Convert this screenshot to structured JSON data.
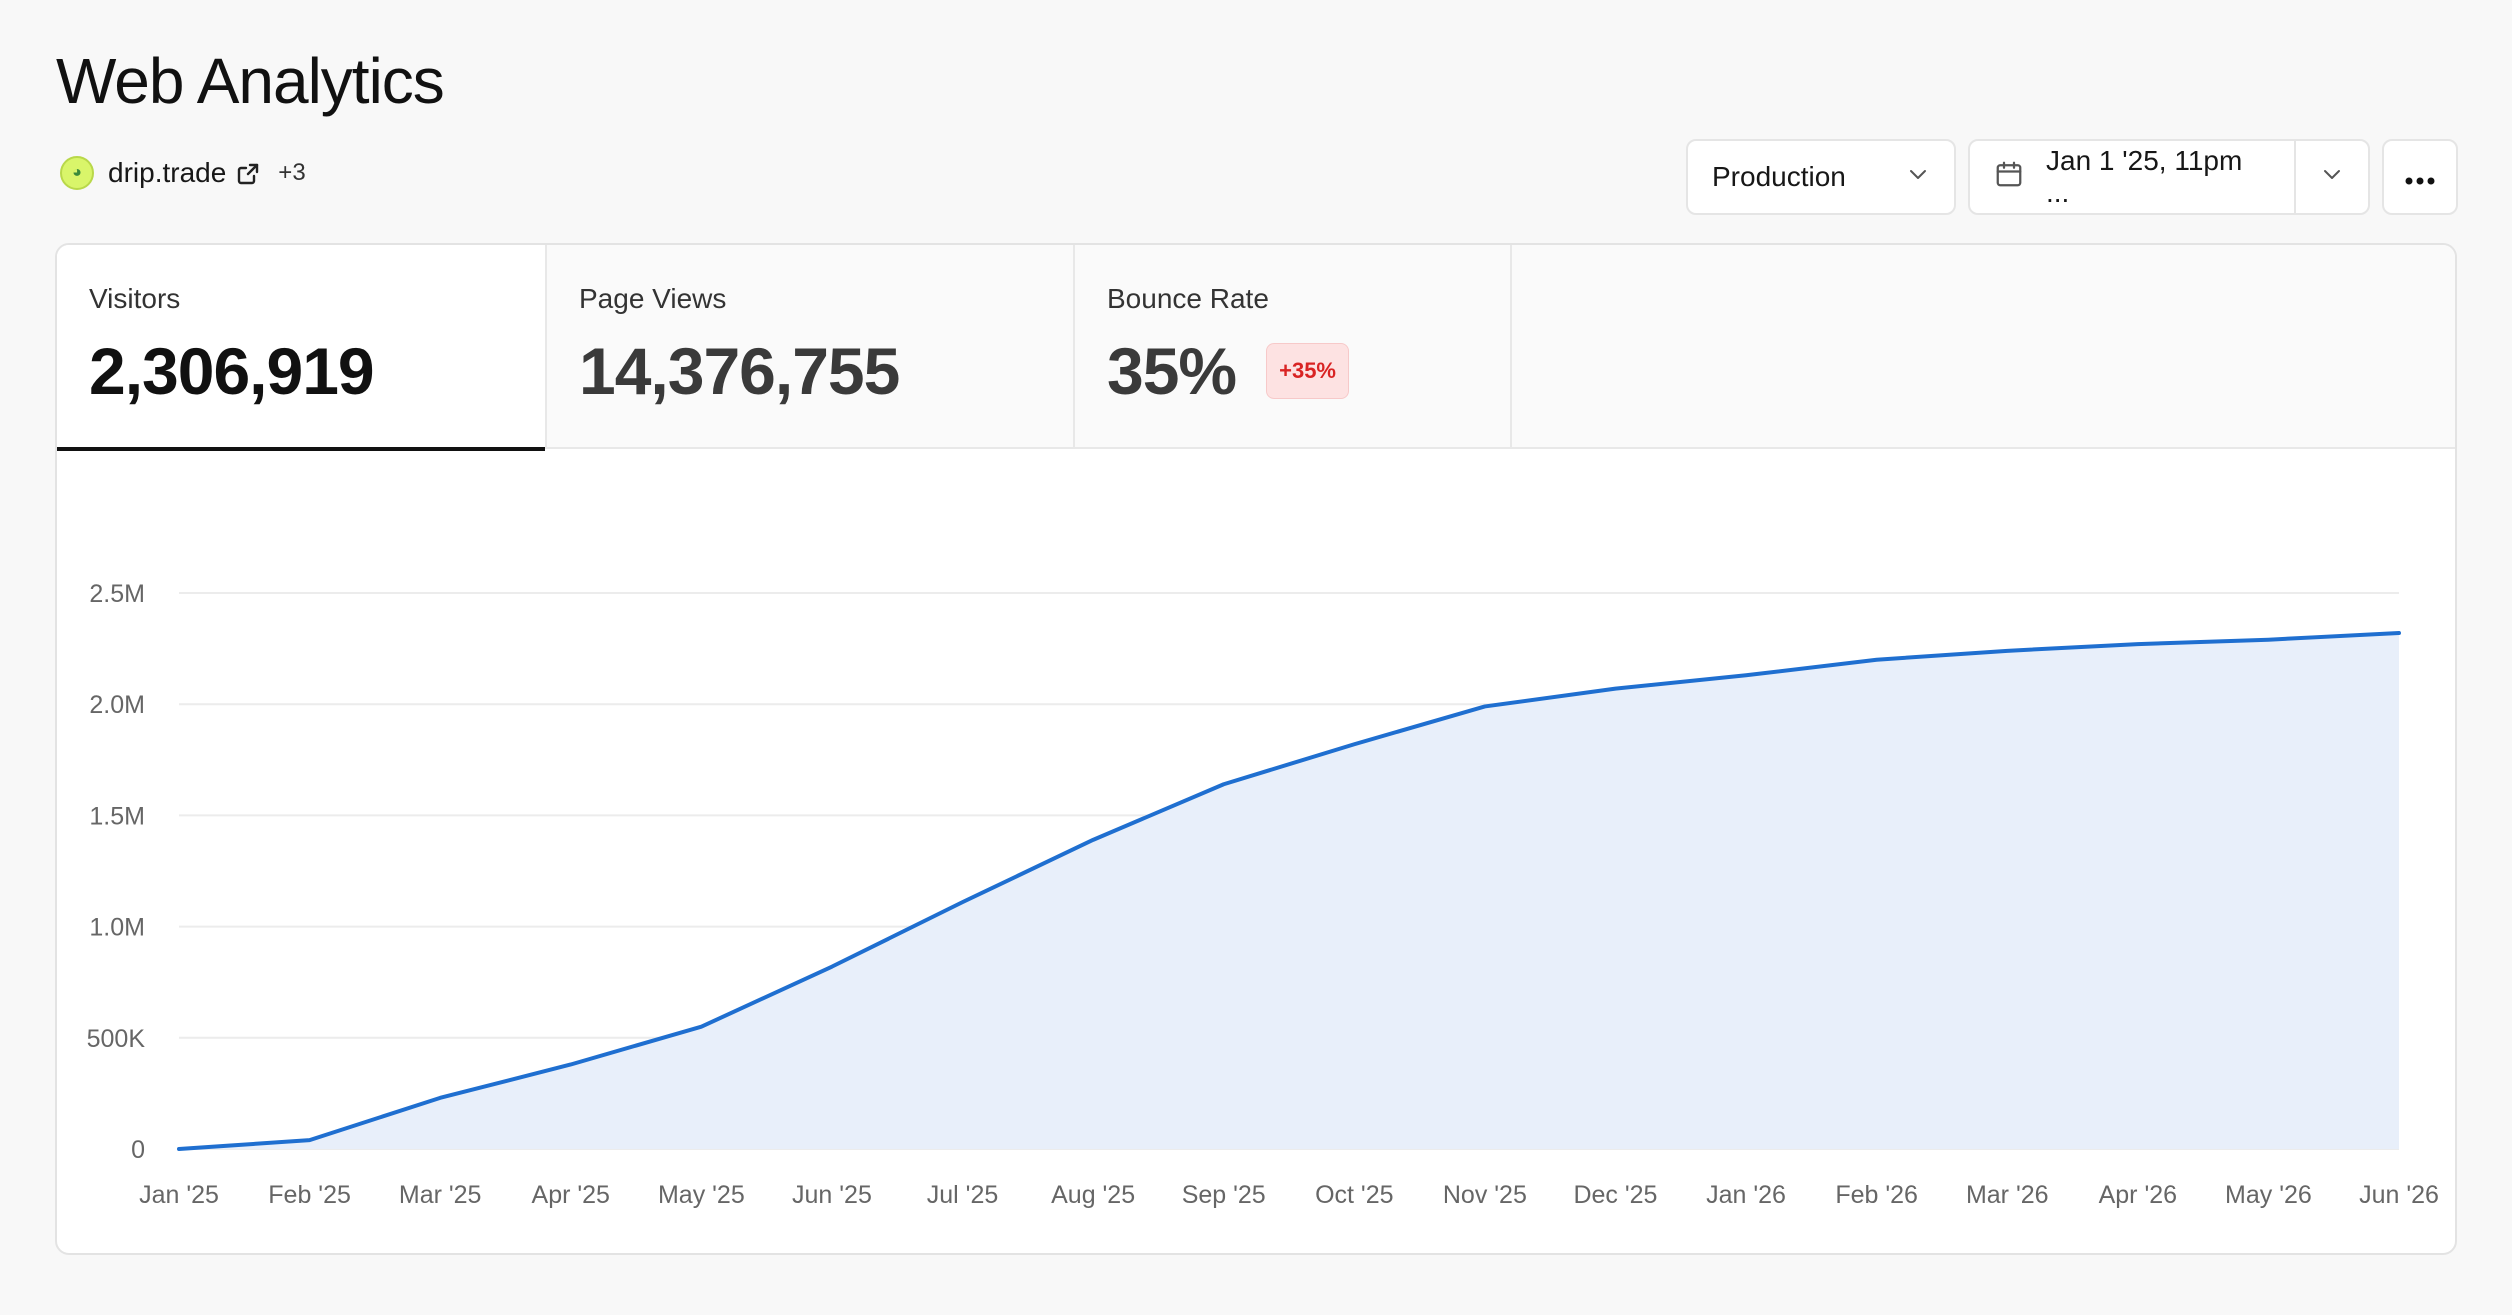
{
  "page": {
    "title": "Web Analytics"
  },
  "project": {
    "name": "drip.trade",
    "more": "+3"
  },
  "controls": {
    "environment": "Production",
    "date_range": "Jan 1 '25, 11pm ..."
  },
  "metrics": [
    {
      "label": "Visitors",
      "value": "2,306,919",
      "active": true
    },
    {
      "label": "Page Views",
      "value": "14,376,755",
      "active": false
    },
    {
      "label": "Bounce Rate",
      "value": "35%",
      "badge": "+35%",
      "active": false
    }
  ],
  "colors": {
    "line": "#1f6fd0",
    "area": "#e8effa",
    "badge_text": "#d92323",
    "badge_bg": "#fde2e2"
  },
  "chart_data": {
    "type": "area",
    "x": [
      "Jan '25",
      "Feb '25",
      "Mar '25",
      "Apr '25",
      "May '25",
      "Jun '25",
      "Jul '25",
      "Aug '25",
      "Sep '25",
      "Oct '25",
      "Nov '25",
      "Dec '25",
      "Jan '26",
      "Feb '26",
      "Mar '26",
      "Apr '26",
      "May '26",
      "Jun '26"
    ],
    "series": [
      {
        "values": [
          0,
          40000,
          230000,
          380000,
          550000,
          820000,
          1110000,
          1390000,
          1640000,
          1820000,
          1990000,
          2070000,
          2130000,
          2200000,
          2240000,
          2270000,
          2290000,
          2320000
        ]
      }
    ],
    "y_ticks": [
      {
        "value": 0,
        "label": "0"
      },
      {
        "value": 500000,
        "label": "500K"
      },
      {
        "value": 1000000,
        "label": "1.0M"
      },
      {
        "value": 1500000,
        "label": "1.5M"
      },
      {
        "value": 2000000,
        "label": "2.0M"
      },
      {
        "value": 2500000,
        "label": "2.5M"
      }
    ],
    "ylim": [
      0,
      2500000
    ],
    "grid": true
  }
}
